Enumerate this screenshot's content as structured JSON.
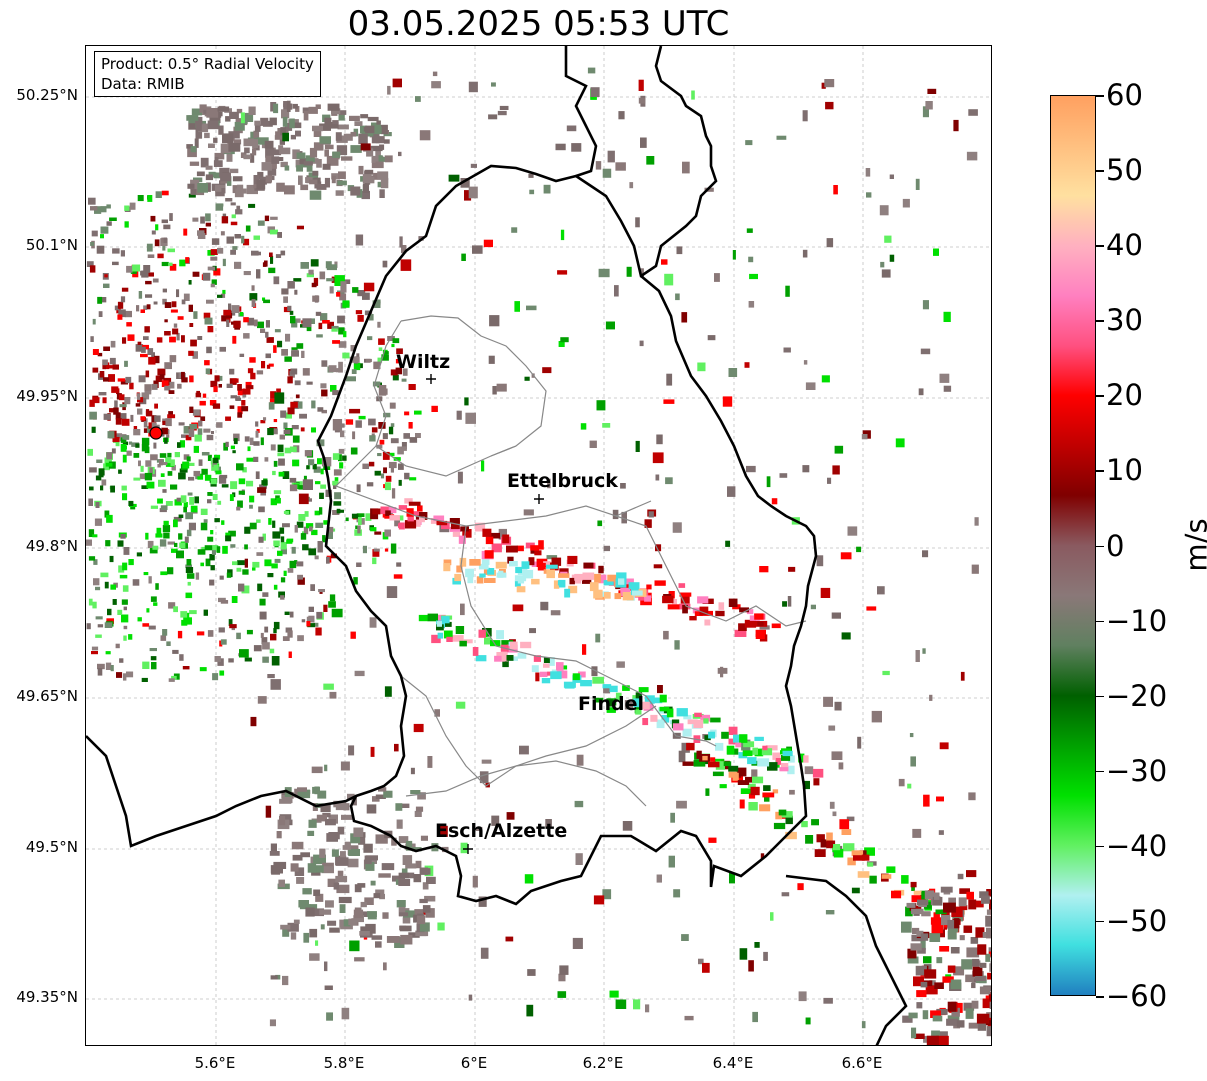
{
  "title": "03.05.2025 05:53 UTC",
  "info": {
    "product": "Product: 0.5° Radial Velocity",
    "source": "Data: RMIB"
  },
  "lat_ticks": [
    "50.25°N",
    "50.1°N",
    "49.95°N",
    "49.8°N",
    "49.65°N",
    "49.5°N",
    "49.35°N"
  ],
  "lon_ticks": [
    "5.6°E",
    "5.8°E",
    "6°E",
    "6.2°E",
    "6.4°E",
    "6.6°E"
  ],
  "places": [
    "Wiltz",
    "Ettelbruck",
    "Findel",
    "Esch/Alzette"
  ],
  "colorbar": {
    "unit": "m/s",
    "ticks": [
      "60",
      "50",
      "40",
      "30",
      "20",
      "10",
      "0",
      "−10",
      "−20",
      "−30",
      "−40",
      "−50",
      "−60"
    ],
    "colors": [
      "#ffa060",
      "#ffc080",
      "#ffe0a0",
      "#ffb0c0",
      "#ff80c0",
      "#ff5080",
      "#ff0000",
      "#c00000",
      "#800000",
      "#8a5a60",
      "#8a7878",
      "#608060",
      "#006000",
      "#00a000",
      "#00e000",
      "#60f060",
      "#b0f0f0",
      "#40e0e0",
      "#2080c0"
    ]
  },
  "colors": {
    "background": "#ffffff",
    "border": "#000000",
    "district": "#888888",
    "gridline": "#c0c0c0",
    "radar_site": "#ff0000"
  }
}
